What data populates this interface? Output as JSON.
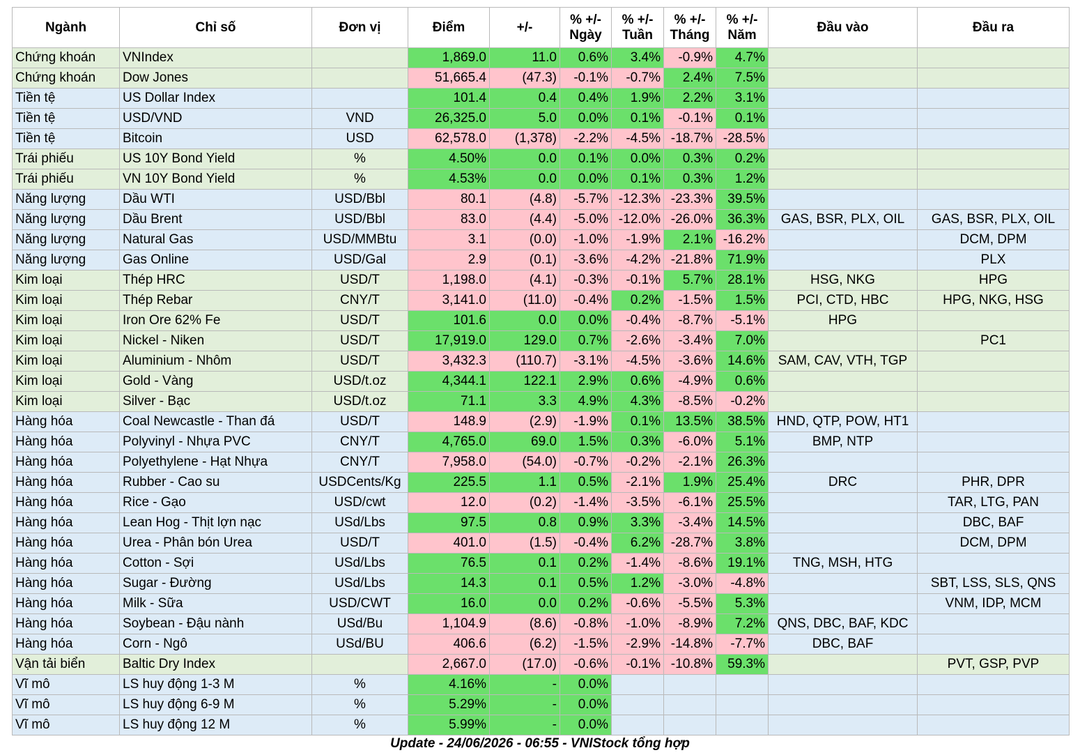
{
  "headers": [
    "Ngành",
    "Chỉ số",
    "Đơn vị",
    "Điểm",
    "+/-",
    "% +/- Ngày",
    "% +/- Tuần",
    "% +/- Tháng",
    "% +/- Năm",
    "Đầu vào",
    "Đầu ra"
  ],
  "header_lines": [
    [
      "Ngành"
    ],
    [
      "Chỉ số"
    ],
    [
      "Đơn vị"
    ],
    [
      "Điểm"
    ],
    [
      "+/-"
    ],
    [
      "% +/-",
      "Ngày"
    ],
    [
      "% +/-",
      "Tuần"
    ],
    [
      "% +/-",
      "Tháng"
    ],
    [
      "% +/-",
      "Năm"
    ],
    [
      "Đầu vào"
    ],
    [
      "Đầu ra"
    ]
  ],
  "colors": {
    "row_green": "#e2efda",
    "row_blue": "#ddebf7",
    "cell_up": "#6be06b",
    "cell_down": "#ffc4cc",
    "text_down": "#c00000"
  },
  "rows": [
    [
      "Chứng khoán",
      "VNIndex",
      "",
      "1,869.0",
      "11.0",
      "0.6%",
      "3.4%",
      "-0.9%",
      "4.7%",
      "",
      ""
    ],
    [
      "Chứng khoán",
      "Dow Jones",
      "",
      "51,665.4",
      "(47.3)",
      "-0.1%",
      "-0.7%",
      "2.4%",
      "7.5%",
      "",
      ""
    ],
    [
      "Tiền tệ",
      "US Dollar Index",
      "",
      "101.4",
      "0.4",
      "0.4%",
      "1.9%",
      "2.2%",
      "3.1%",
      "",
      ""
    ],
    [
      "Tiền tệ",
      "USD/VND",
      "VND",
      "26,325.0",
      "5.0",
      "0.0%",
      "0.1%",
      "-0.1%",
      "0.1%",
      "",
      ""
    ],
    [
      "Tiền tệ",
      "Bitcoin",
      "USD",
      "62,578.0",
      "(1,378)",
      "-2.2%",
      "-4.5%",
      "-18.7%",
      "-28.5%",
      "",
      ""
    ],
    [
      "Trái phiếu",
      "US 10Y Bond Yield",
      "%",
      "4.50%",
      "0.0",
      "0.1%",
      "0.0%",
      "0.3%",
      "0.2%",
      "",
      ""
    ],
    [
      "Trái phiếu",
      "VN 10Y Bond Yield",
      "%",
      "4.53%",
      "0.0",
      "0.0%",
      "0.1%",
      "0.3%",
      "1.2%",
      "",
      ""
    ],
    [
      "Năng lượng",
      "Dầu WTI",
      "USD/Bbl",
      "80.1",
      "(4.8)",
      "-5.7%",
      "-12.3%",
      "-23.3%",
      "39.5%",
      "",
      ""
    ],
    [
      "Năng lượng",
      "Dầu Brent",
      "USD/Bbl",
      "83.0",
      "(4.4)",
      "-5.0%",
      "-12.0%",
      "-26.0%",
      "36.3%",
      "GAS, BSR, PLX, OIL",
      "GAS, BSR, PLX, OIL"
    ],
    [
      "Năng lượng",
      "Natural Gas",
      "USD/MMBtu",
      "3.1",
      "(0.0)",
      "-1.0%",
      "-1.9%",
      "2.1%",
      "-16.2%",
      "",
      "DCM, DPM"
    ],
    [
      "Năng lượng",
      "Gas Online",
      "USD/Gal",
      "2.9",
      "(0.1)",
      "-3.6%",
      "-4.2%",
      "-21.8%",
      "71.9%",
      "",
      "PLX"
    ],
    [
      "Kim loại",
      "Thép HRC",
      "USD/T",
      "1,198.0",
      "(4.1)",
      "-0.3%",
      "-0.1%",
      "5.7%",
      "28.1%",
      "HSG, NKG",
      "HPG"
    ],
    [
      "Kim loại",
      "Thép Rebar",
      "CNY/T",
      "3,141.0",
      "(11.0)",
      "-0.4%",
      "0.2%",
      "-1.5%",
      "1.5%",
      "PCI, CTD, HBC",
      "HPG, NKG, HSG"
    ],
    [
      "Kim loại",
      "Iron Ore 62% Fe",
      "USD/T",
      "101.6",
      "0.0",
      "0.0%",
      "-0.4%",
      "-8.7%",
      "-5.1%",
      "HPG",
      ""
    ],
    [
      "Kim loại",
      "Nickel - Niken",
      "USD/T",
      "17,919.0",
      "129.0",
      "0.7%",
      "-2.6%",
      "-3.4%",
      "7.0%",
      "",
      "PC1"
    ],
    [
      "Kim loại",
      "Aluminium - Nhôm",
      "USD/T",
      "3,432.3",
      "(110.7)",
      "-3.1%",
      "-4.5%",
      "-3.6%",
      "14.6%",
      "SAM, CAV, VTH, TGP",
      ""
    ],
    [
      "Kim loại",
      "Gold - Vàng",
      "USD/t.oz",
      "4,344.1",
      "122.1",
      "2.9%",
      "0.6%",
      "-4.9%",
      "0.6%",
      "",
      ""
    ],
    [
      "Kim loại",
      "Silver - Bạc",
      "USD/t.oz",
      "71.1",
      "3.3",
      "4.9%",
      "4.3%",
      "-8.5%",
      "-0.2%",
      "",
      ""
    ],
    [
      "Hàng hóa",
      "Coal Newcastle - Than đá",
      "USD/T",
      "148.9",
      "(2.9)",
      "-1.9%",
      "0.1%",
      "13.5%",
      "38.5%",
      "HND, QTP, POW, HT1",
      ""
    ],
    [
      "Hàng hóa",
      "Polyvinyl - Nhựa PVC",
      "CNY/T",
      "4,765.0",
      "69.0",
      "1.5%",
      "0.3%",
      "-6.0%",
      "5.1%",
      "BMP, NTP",
      ""
    ],
    [
      "Hàng hóa",
      "Polyethylene - Hạt Nhựa",
      "CNY/T",
      "7,958.0",
      "(54.0)",
      "-0.7%",
      "-0.2%",
      "-2.1%",
      "26.3%",
      "",
      ""
    ],
    [
      "Hàng hóa",
      "Rubber - Cao su",
      "USDCents/Kg",
      "225.5",
      "1.1",
      "0.5%",
      "-2.1%",
      "1.9%",
      "25.4%",
      "DRC",
      "PHR, DPR"
    ],
    [
      "Hàng hóa",
      "Rice - Gạo",
      "USD/cwt",
      "12.0",
      "(0.2)",
      "-1.4%",
      "-3.5%",
      "-6.1%",
      "25.5%",
      "",
      "TAR, LTG, PAN"
    ],
    [
      "Hàng hóa",
      "Lean Hog - Thịt lợn nạc",
      "USd/Lbs",
      "97.5",
      "0.8",
      "0.9%",
      "3.3%",
      "-3.4%",
      "14.5%",
      "",
      "DBC, BAF"
    ],
    [
      "Hàng hóa",
      "Urea - Phân bón Urea",
      "USD/T",
      "401.0",
      "(1.5)",
      "-0.4%",
      "6.2%",
      "-28.7%",
      "3.8%",
      "",
      "DCM, DPM"
    ],
    [
      "Hàng hóa",
      "Cotton - Sợi",
      "USd/Lbs",
      "76.5",
      "0.1",
      "0.2%",
      "-1.4%",
      "-8.6%",
      "19.1%",
      "TNG, MSH, HTG",
      ""
    ],
    [
      "Hàng hóa",
      "Sugar - Đường",
      "USd/Lbs",
      "14.3",
      "0.1",
      "0.5%",
      "1.2%",
      "-3.0%",
      "-4.8%",
      "",
      "SBT, LSS, SLS, QNS"
    ],
    [
      "Hàng hóa",
      "Milk - Sữa",
      "USD/CWT",
      "16.0",
      "0.0",
      "0.2%",
      "-0.6%",
      "-5.5%",
      "5.3%",
      "",
      "VNM, IDP, MCM"
    ],
    [
      "Hàng hóa",
      "Soybean - Đậu nành",
      "USd/Bu",
      "1,104.9",
      "(8.6)",
      "-0.8%",
      "-1.0%",
      "-8.9%",
      "7.2%",
      "QNS, DBC, BAF, KDC",
      ""
    ],
    [
      "Hàng hóa",
      "Corn - Ngô",
      "USd/BU",
      "406.6",
      "(6.2)",
      "-1.5%",
      "-2.9%",
      "-14.8%",
      "-7.7%",
      "DBC, BAF",
      ""
    ],
    [
      "Vận tải biển",
      "Baltic Dry Index",
      "",
      "2,667.0",
      "(17.0)",
      "-0.6%",
      "-0.1%",
      "-10.8%",
      "59.3%",
      "",
      "PVT, GSP, PVP"
    ],
    [
      "Vĩ mô",
      "LS huy động 1-3 M",
      "%",
      "4.16%",
      "-",
      "0.0%",
      "",
      "",
      "",
      "",
      ""
    ],
    [
      "Vĩ mô",
      "LS huy động 6-9 M",
      "%",
      "5.29%",
      "-",
      "0.0%",
      "",
      "",
      "",
      "",
      ""
    ],
    [
      "Vĩ mô",
      "LS huy động 12 M",
      "%",
      "5.99%",
      "-",
      "0.0%",
      "",
      "",
      "",
      "",
      ""
    ]
  ],
  "cell_status": [
    [
      "up",
      "up",
      "up",
      "up",
      "dn",
      "up"
    ],
    [
      "dn",
      "dn",
      "dn",
      "dn",
      "up",
      "up"
    ],
    [
      "up",
      "up",
      "up",
      "up",
      "up",
      "up"
    ],
    [
      "up",
      "up",
      "up",
      "up",
      "dn",
      "up"
    ],
    [
      "dn",
      "dn",
      "dn",
      "dn",
      "dn",
      "dn"
    ],
    [
      "up",
      "up",
      "up",
      "up",
      "up",
      "up"
    ],
    [
      "up",
      "up",
      "up",
      "up",
      "up",
      "up"
    ],
    [
      "dn",
      "dn",
      "dn",
      "dn",
      "dn",
      "up"
    ],
    [
      "dn",
      "dn",
      "dn",
      "dn",
      "dn",
      "up"
    ],
    [
      "dn",
      "dn",
      "dn",
      "dn",
      "up",
      "dn"
    ],
    [
      "dn",
      "dn",
      "dn",
      "dn",
      "dn",
      "up"
    ],
    [
      "dn",
      "dn",
      "dn",
      "dn",
      "up",
      "up"
    ],
    [
      "dn",
      "dn",
      "dn",
      "up",
      "dn",
      "up"
    ],
    [
      "up",
      "up",
      "up",
      "dn",
      "dn",
      "dn"
    ],
    [
      "up",
      "up",
      "up",
      "dn",
      "dn",
      "up"
    ],
    [
      "dn",
      "dn",
      "dn",
      "dn",
      "dn",
      "up"
    ],
    [
      "up",
      "up",
      "up",
      "up",
      "dn",
      "up"
    ],
    [
      "up",
      "up",
      "up",
      "up",
      "dn",
      "dn"
    ],
    [
      "dn",
      "dn",
      "dn",
      "up",
      "up",
      "up"
    ],
    [
      "up",
      "up",
      "up",
      "up",
      "dn",
      "up"
    ],
    [
      "dn",
      "dn",
      "dn",
      "dn",
      "dn",
      "up"
    ],
    [
      "up",
      "up",
      "up",
      "dn",
      "up",
      "up"
    ],
    [
      "dn",
      "dn",
      "dn",
      "dn",
      "dn",
      "up"
    ],
    [
      "up",
      "up",
      "up",
      "up",
      "dn",
      "up"
    ],
    [
      "dn",
      "dn",
      "dn",
      "up",
      "dn",
      "up"
    ],
    [
      "up",
      "up",
      "up",
      "dn",
      "dn",
      "up"
    ],
    [
      "up",
      "up",
      "up",
      "up",
      "dn",
      "dn"
    ],
    [
      "up",
      "up",
      "up",
      "dn",
      "dn",
      "up"
    ],
    [
      "dn",
      "dn",
      "dn",
      "dn",
      "dn",
      "up"
    ],
    [
      "dn",
      "dn",
      "dn",
      "dn",
      "dn",
      "dn"
    ],
    [
      "dn",
      "dn",
      "dn",
      "dn",
      "dn",
      "up"
    ],
    [
      "up",
      "up",
      "up",
      "",
      "",
      ""
    ],
    [
      "up",
      "up",
      "up",
      "",
      "",
      ""
    ],
    [
      "up",
      "up",
      "up",
      "",
      "",
      ""
    ]
  ],
  "row_colors": [
    "green",
    "green",
    "blue",
    "blue",
    "blue",
    "green",
    "green",
    "blue",
    "blue",
    "blue",
    "blue",
    "green",
    "green",
    "green",
    "green",
    "green",
    "green",
    "green",
    "blue",
    "blue",
    "blue",
    "blue",
    "blue",
    "blue",
    "blue",
    "blue",
    "blue",
    "blue",
    "blue",
    "blue",
    "green",
    "blue",
    "blue",
    "blue"
  ],
  "footer": "Update - 24/06/2026 - 06:55 - VNIStock tổng hợp"
}
